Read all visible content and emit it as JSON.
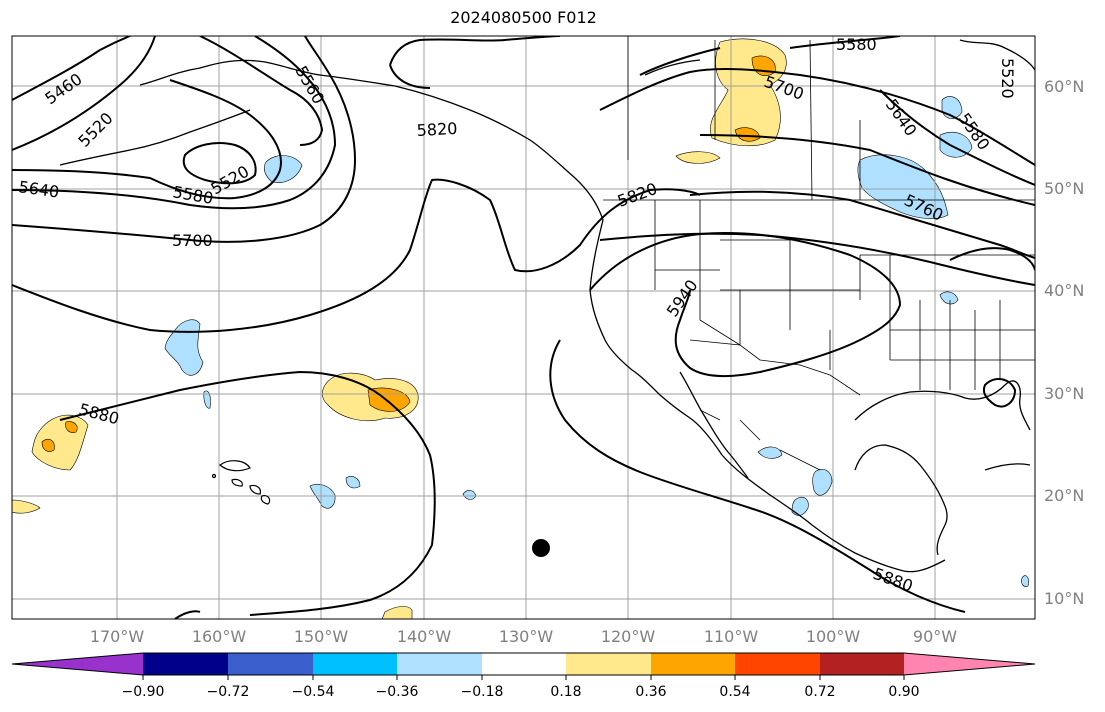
{
  "title": "2024080500 F012",
  "lat_labels": [
    "60°N",
    "50°N",
    "40°N",
    "30°N",
    "20°N",
    "10°N"
  ],
  "lon_labels": [
    "170°W",
    "160°W",
    "150°W",
    "140°W",
    "130°W",
    "120°W",
    "110°W",
    "100°W",
    "90°W"
  ],
  "contour_labels": [
    "5460",
    "5520",
    "5560",
    "5520",
    "5580",
    "5640",
    "5700",
    "5820",
    "5820",
    "5580",
    "5700",
    "5640",
    "5580",
    "5520",
    "5760",
    "5940",
    "5880",
    "5880"
  ],
  "colorbar": {
    "ticks": [
      "−0.90",
      "−0.72",
      "−0.54",
      "−0.36",
      "−0.18",
      "0.18",
      "0.36",
      "0.54",
      "0.72",
      "0.90"
    ],
    "colors": [
      "#9932cc",
      "#00008b",
      "#3a5fcd",
      "#00bfff",
      "#b0e0ff",
      "#ffffff",
      "#ffe98c",
      "#ffa500",
      "#ff4500",
      "#b22222",
      "#ff85b0"
    ]
  },
  "colors": {
    "pos1": "#ffe98c",
    "pos2": "#ffa500",
    "neg1": "#b0e0ff",
    "neg2": "#00bfff",
    "contour": "#000000",
    "grid": "#a0a0a0",
    "axis_text": "#808080"
  }
}
